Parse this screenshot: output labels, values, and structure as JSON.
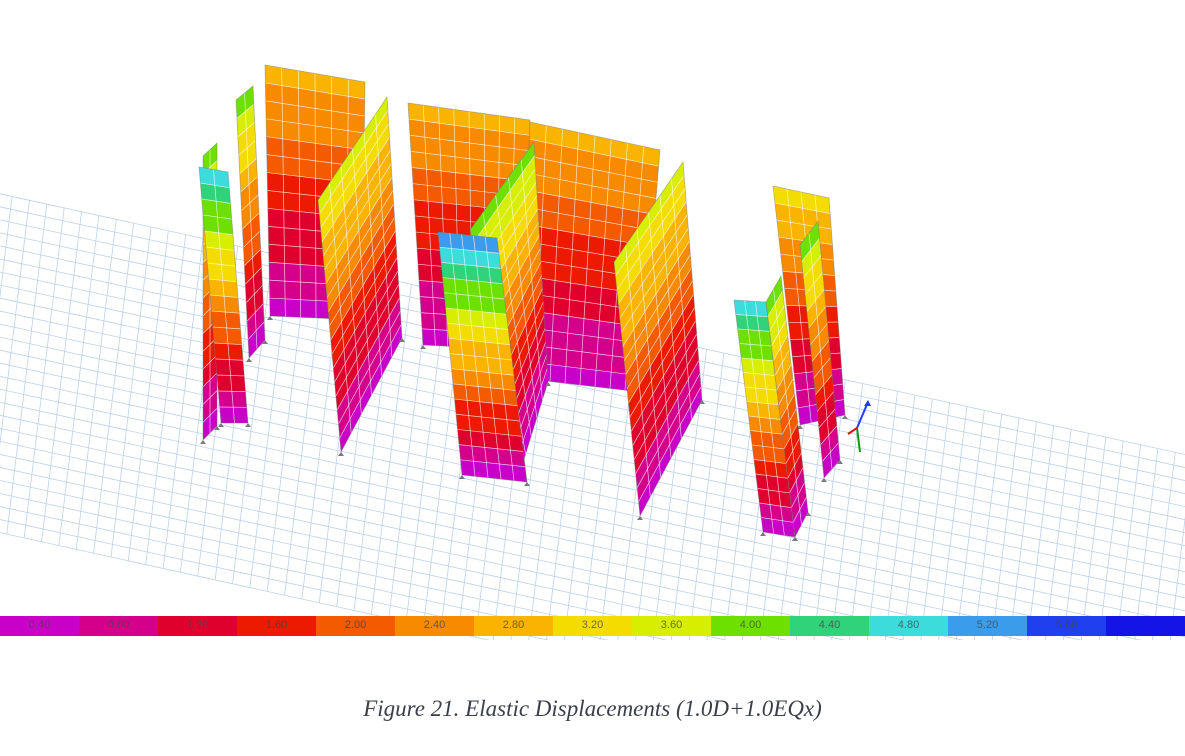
{
  "figure": {
    "caption": "Figure 21. Elastic Displacements (1.0D+1.0EQx)"
  },
  "legend": {
    "ticks": [
      "0.40",
      "0.80",
      "1.20",
      "1.60",
      "2.00",
      "2.40",
      "2.80",
      "3.20",
      "3.60",
      "4.00",
      "4.40",
      "4.80",
      "5.20",
      "5.60"
    ],
    "colors": [
      "#c800c8",
      "#d4008c",
      "#e0002e",
      "#ec1a00",
      "#f45a00",
      "#f88a00",
      "#fab400",
      "#f5dc00",
      "#d8ee00",
      "#6ee000",
      "#30d27a",
      "#3cdcdc",
      "#3c9cec",
      "#2040f0",
      "#1414e6"
    ]
  },
  "axes_triad": {
    "colors": [
      "#1f3cff",
      "#0a9a0a",
      "#e01010"
    ]
  }
}
